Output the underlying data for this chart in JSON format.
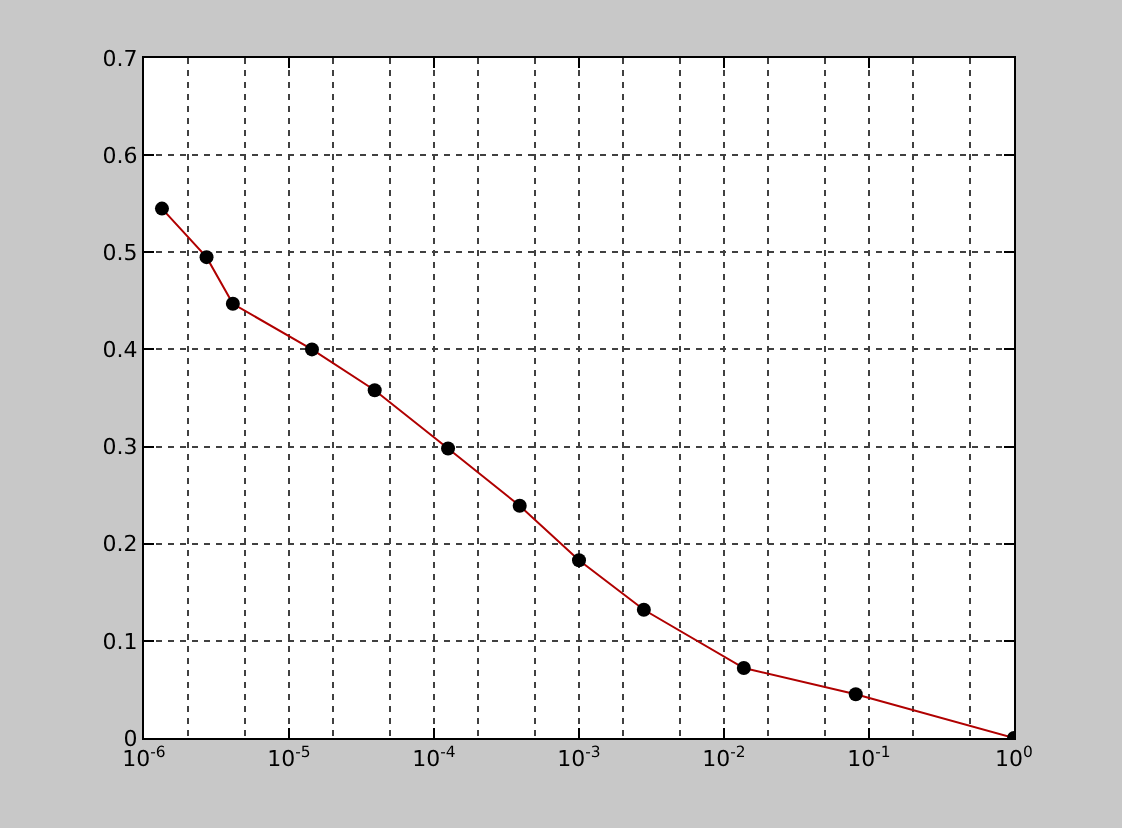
{
  "chart_data": {
    "type": "line",
    "log": "x",
    "grid": true,
    "marker": "circle",
    "line_style": "solid",
    "x": [
      1.33e-06,
      2.7e-06,
      4.1e-06,
      1.44e-05,
      3.9e-05,
      0.000125,
      0.00039,
      0.001,
      0.0028,
      0.0137,
      0.081,
      1
    ],
    "series": [
      {
        "color": "#b00000",
        "colors": [
          "#000000",
          "#000000",
          "#000000",
          "#000000",
          "#000000",
          "#000000",
          "#000000",
          "#000000",
          "#000000",
          "#000000",
          "#000000",
          "#000000"
        ],
        "values": [
          0.545,
          0.495,
          0.447,
          0.4,
          0.358,
          0.298,
          0.239,
          0.183,
          0.132,
          0.072,
          0.045,
          0
        ]
      }
    ],
    "xlim": [
      1e-06,
      1
    ],
    "xticks": [
      {
        "value": 1e-06,
        "label": "10$^{-6}$"
      },
      {
        "value": 1e-05,
        "label": "10$^{-5}$"
      },
      {
        "value": 0.0001,
        "label": "10$^{-4}$"
      },
      {
        "value": 0.001,
        "label": "10$^{-3}$"
      },
      {
        "value": 0.01,
        "label": "10$^{-2}$"
      },
      {
        "value": 0.1,
        "label": "10$^{-1}$"
      },
      {
        "value": 1,
        "label": "10$^{0}$"
      }
    ],
    "ylim": [
      0,
      0.7
    ],
    "yticks": [
      0,
      0.1,
      0.2,
      0.3,
      0.4,
      0.5,
      0.6,
      0.7
    ]
  }
}
